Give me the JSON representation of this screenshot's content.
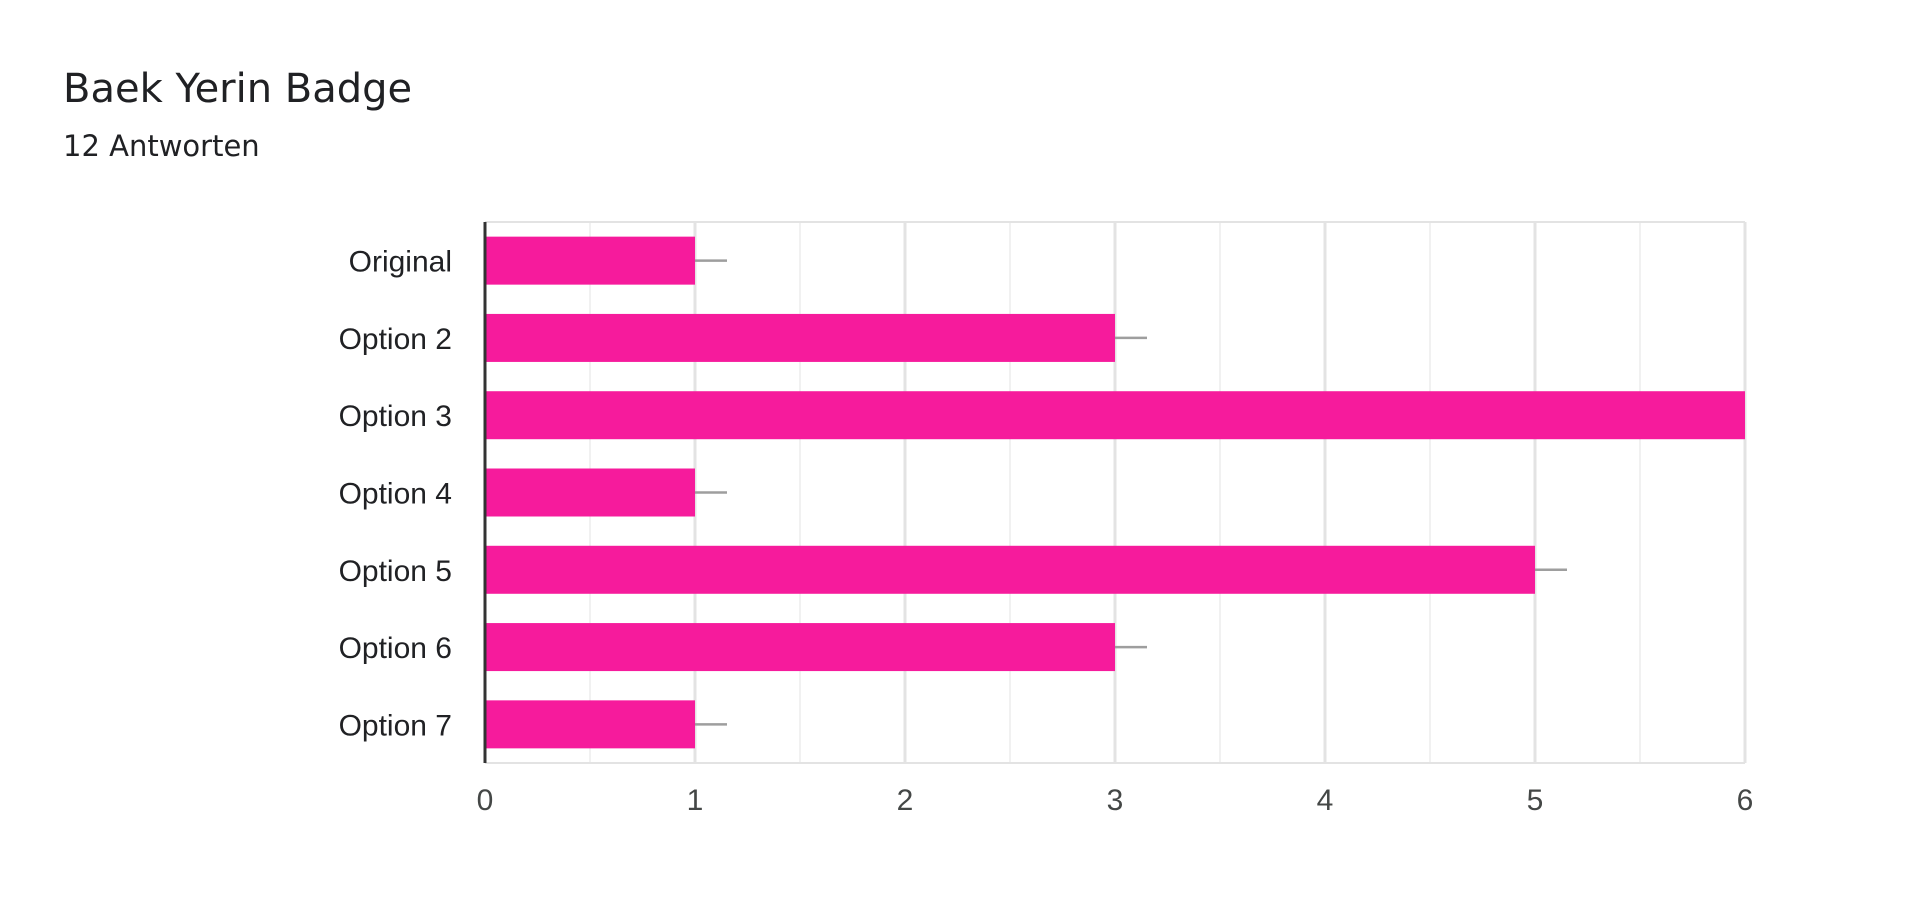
{
  "header": {
    "title": "Baek Yerin Badge",
    "subtitle": "12 Antworten"
  },
  "colors": {
    "bar": "#f61b9c",
    "grid_major": "#e3e3e3",
    "grid_minor": "#f1f1f1",
    "axis": "#333333",
    "error_bar": "#9e9e9e"
  },
  "chart_data": {
    "type": "bar",
    "orientation": "horizontal",
    "title": "Baek Yerin Badge",
    "subtitle": "12 Antworten",
    "categories": [
      "Original",
      "Option 2",
      "Option 3",
      "Option 4",
      "Option 5",
      "Option 6",
      "Option 7"
    ],
    "values": [
      1,
      3,
      6,
      1,
      5,
      3,
      1
    ],
    "xlim": [
      0,
      6
    ],
    "xticks": [
      "0",
      "1",
      "2",
      "3",
      "4",
      "5",
      "6"
    ],
    "grid": true,
    "legend": "none"
  }
}
